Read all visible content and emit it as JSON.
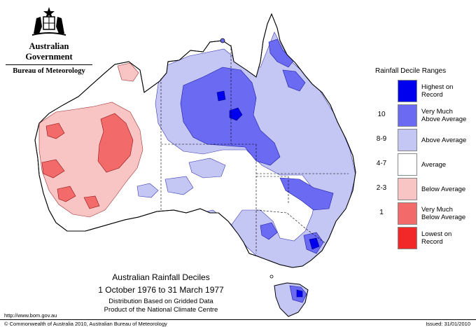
{
  "header": {
    "government": "Australian Government",
    "bureau": "Bureau of Meteorology"
  },
  "legend": {
    "title": "Rainfall Decile Ranges",
    "items": [
      {
        "code": "",
        "label_line1": "Highest on",
        "label_line2": "Record",
        "color": "#0000ee"
      },
      {
        "code": "10",
        "label_line1": "Very Much",
        "label_line2": "Above Average",
        "color": "#6a6af2"
      },
      {
        "code": "8-9",
        "label_line1": "Above Average",
        "label_line2": "",
        "color": "#c4c6f4"
      },
      {
        "code": "4-7",
        "label_line1": "Average",
        "label_line2": "",
        "color": "#ffffff"
      },
      {
        "code": "2-3",
        "label_line1": "Below Average",
        "label_line2": "",
        "color": "#f8c4c4"
      },
      {
        "code": "1",
        "label_line1": "Very Much",
        "label_line2": "Below Average",
        "color": "#f26a6a"
      },
      {
        "code": "",
        "label_line1": "Lowest on",
        "label_line2": "Record",
        "color": "#f22828"
      }
    ]
  },
  "map": {
    "title": "Australian Rainfall Deciles",
    "dates": "1 October 1976 to 31 March 1977",
    "subtitle_line1": "Distribution Based on Gridded Data",
    "subtitle_line2": "Product of the National Climate Centre"
  },
  "footer": {
    "url": "http://www.bom.gov.au",
    "copyright": "© Commonwealth of Australia 2010, Australian Bureau of Meteorology",
    "issued": "Issued: 31/01/2010"
  }
}
